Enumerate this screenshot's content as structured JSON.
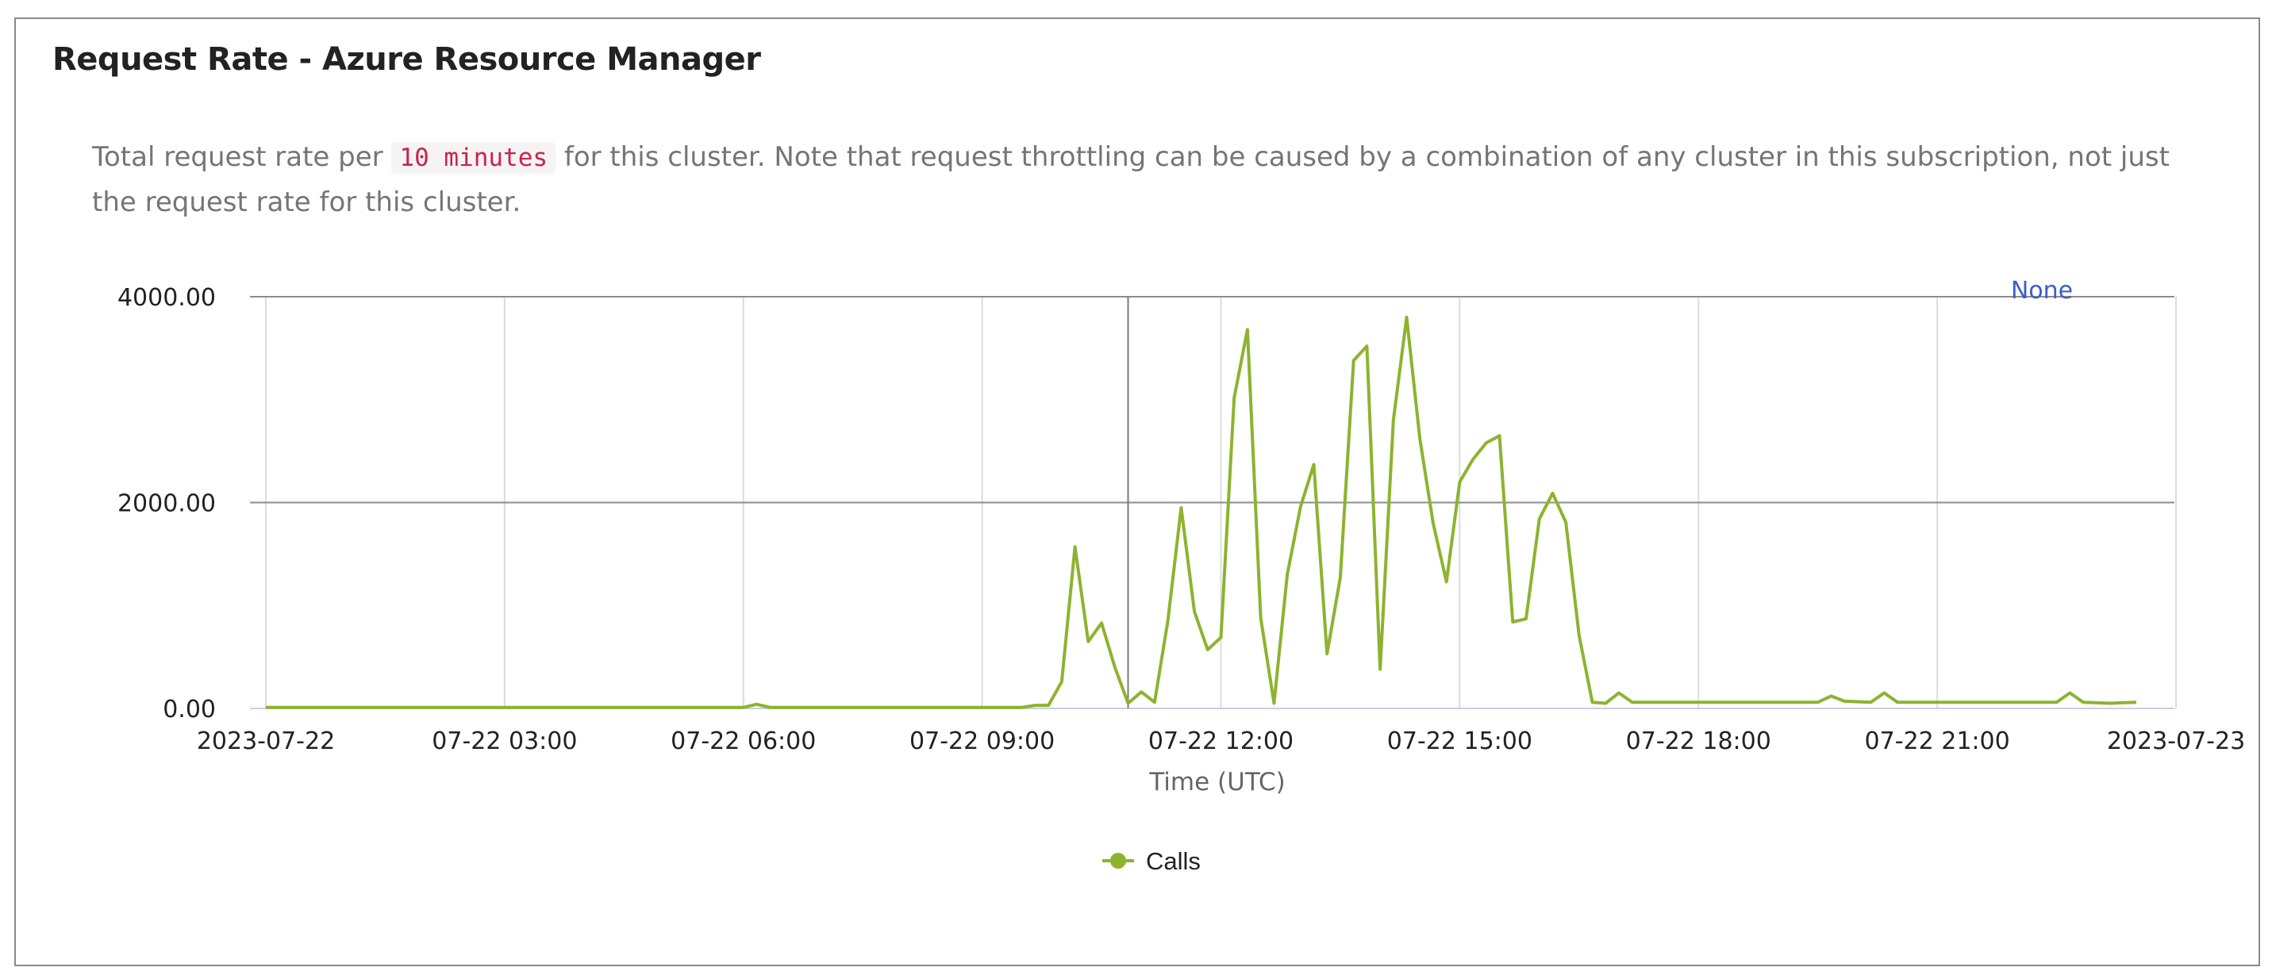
{
  "panel": {
    "title": "Request Rate - Azure Resource Manager",
    "description_before": "Total request rate per ",
    "interval": "10 minutes",
    "description_after": " for this cluster. Note that request throttling can be caused by a combination of any cluster in this subscription, not just the request rate for this cluster."
  },
  "colors": {
    "series": "#8db32f",
    "gridline": "#8c8c8c",
    "minor_grid": "#dcdcdc",
    "none_link": "#3b5fc8"
  },
  "chart_data": {
    "type": "line",
    "xlabel": "Time (UTC)",
    "ylabel": "",
    "ylim": [
      0,
      4000
    ],
    "xlim": [
      "2023-07-22 00:00",
      "2023-07-23 00:00"
    ],
    "y_ticks": [
      "4000.00",
      "2000.00",
      "0.00"
    ],
    "y_tick_values": [
      4000,
      2000,
      0
    ],
    "x_tick_labels": [
      "2023-07-22",
      "07-22 03:00",
      "07-22 06:00",
      "07-22 09:00",
      "07-22 12:00",
      "07-22 15:00",
      "07-22 18:00",
      "07-22 21:00",
      "2023-07-23"
    ],
    "x_tick_times": [
      "2023-07-22 00:00",
      "2023-07-22 03:00",
      "2023-07-22 06:00",
      "2023-07-22 09:00",
      "2023-07-22 12:00",
      "2023-07-22 15:00",
      "2023-07-22 18:00",
      "2023-07-22 21:00",
      "2023-07-23 00:00"
    ],
    "annotation": {
      "text": "None",
      "position": "top-right"
    },
    "cursor_time": "2023-07-22 10:50",
    "legend": {
      "position": "bottom-center",
      "entries": [
        "Calls"
      ]
    },
    "series": [
      {
        "name": "Calls",
        "x": [
          "2023-07-22 00:00",
          "2023-07-22 06:00",
          "2023-07-22 06:10",
          "2023-07-22 06:20",
          "2023-07-22 09:30",
          "2023-07-22 09:40",
          "2023-07-22 09:50",
          "2023-07-22 10:00",
          "2023-07-22 10:10",
          "2023-07-22 10:20",
          "2023-07-22 10:30",
          "2023-07-22 10:40",
          "2023-07-22 10:50",
          "2023-07-22 11:00",
          "2023-07-22 11:10",
          "2023-07-22 11:20",
          "2023-07-22 11:30",
          "2023-07-22 11:40",
          "2023-07-22 11:50",
          "2023-07-22 12:00",
          "2023-07-22 12:10",
          "2023-07-22 12:20",
          "2023-07-22 12:30",
          "2023-07-22 12:40",
          "2023-07-22 12:50",
          "2023-07-22 13:00",
          "2023-07-22 13:10",
          "2023-07-22 13:20",
          "2023-07-22 13:30",
          "2023-07-22 13:40",
          "2023-07-22 13:50",
          "2023-07-22 14:00",
          "2023-07-22 14:10",
          "2023-07-22 14:20",
          "2023-07-22 14:30",
          "2023-07-22 14:40",
          "2023-07-22 14:50",
          "2023-07-22 15:00",
          "2023-07-22 15:10",
          "2023-07-22 15:20",
          "2023-07-22 15:30",
          "2023-07-22 15:40",
          "2023-07-22 15:50",
          "2023-07-22 16:00",
          "2023-07-22 16:10",
          "2023-07-22 16:20",
          "2023-07-22 16:30",
          "2023-07-22 16:40",
          "2023-07-22 16:50",
          "2023-07-22 17:00",
          "2023-07-22 17:10",
          "2023-07-22 17:20",
          "2023-07-22 17:30",
          "2023-07-22 18:00",
          "2023-07-22 19:00",
          "2023-07-22 19:30",
          "2023-07-22 19:40",
          "2023-07-22 19:50",
          "2023-07-22 20:10",
          "2023-07-22 20:20",
          "2023-07-22 20:30",
          "2023-07-22 21:00",
          "2023-07-22 22:10",
          "2023-07-22 22:30",
          "2023-07-22 22:40",
          "2023-07-22 22:50",
          "2023-07-22 23:10",
          "2023-07-22 23:30"
        ],
        "values": [
          10,
          10,
          40,
          10,
          10,
          30,
          30,
          260,
          1570,
          650,
          830,
          400,
          50,
          160,
          60,
          850,
          1950,
          940,
          570,
          690,
          3020,
          3680,
          880,
          50,
          1300,
          1960,
          2370,
          530,
          1270,
          3380,
          3520,
          380,
          2800,
          3800,
          2620,
          1800,
          1230,
          2200,
          2420,
          2580,
          2650,
          840,
          870,
          1840,
          2090,
          1810,
          710,
          60,
          50,
          150,
          60,
          60,
          60,
          60,
          60,
          60,
          120,
          70,
          60,
          150,
          60,
          60,
          60,
          60,
          150,
          60,
          50,
          60
        ]
      }
    ]
  }
}
